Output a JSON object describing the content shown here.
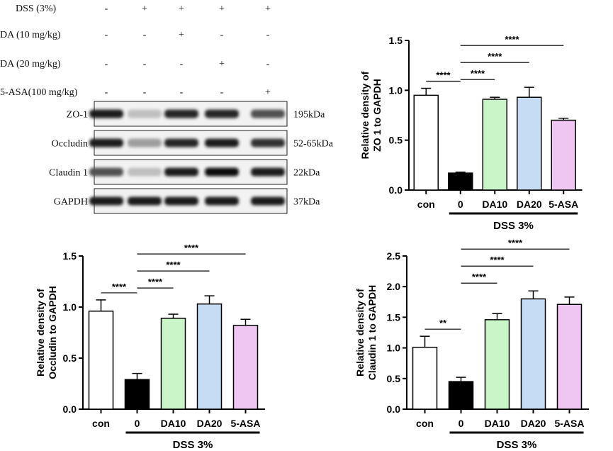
{
  "blot": {
    "conditions": [
      {
        "label": "DSS  (3%)",
        "marks": [
          "-",
          "+",
          "+",
          "+",
          "+"
        ]
      },
      {
        "label": "DA (10 mg/kg)",
        "marks": [
          "-",
          "-",
          "+",
          "-",
          "-"
        ]
      },
      {
        "label": "DA (20 mg/kg)",
        "marks": [
          "-",
          "-",
          "-",
          "+",
          "-"
        ]
      },
      {
        "label": "5-ASA(100 mg/kg)",
        "marks": [
          "-",
          "-",
          "-",
          "-",
          "+"
        ]
      }
    ],
    "proteins": [
      {
        "name": "ZO-1",
        "size": "195kDa",
        "intensity": [
          0.95,
          0.2,
          0.9,
          0.9,
          0.7
        ]
      },
      {
        "name": "Occludin",
        "size": "52-65kDa",
        "intensity": [
          0.95,
          0.35,
          0.9,
          0.95,
          0.85
        ]
      },
      {
        "name": "Claudin 1",
        "size": "22kDa",
        "intensity": [
          0.7,
          0.2,
          0.95,
          1.0,
          0.95
        ]
      },
      {
        "name": "GAPDH",
        "size": "37kDa",
        "intensity": [
          0.95,
          0.95,
          0.95,
          0.95,
          0.95
        ]
      }
    ]
  },
  "chart_data": [
    {
      "type": "bar",
      "ylabel_lines": [
        "Relative density of",
        "ZO 1 to GAPDH"
      ],
      "categories": [
        "con",
        "0",
        "DA10",
        "DA20",
        "5-ASA"
      ],
      "values": [
        0.95,
        0.17,
        0.91,
        0.93,
        0.7
      ],
      "errors": [
        0.07,
        0.01,
        0.02,
        0.1,
        0.02
      ],
      "ylim": [
        0,
        1.5
      ],
      "yticks": [
        "0.0",
        "0.5",
        "1.0",
        "1.5"
      ],
      "colors": [
        "#ffffff",
        "#000000",
        "#c9f5c9",
        "#c6dcf5",
        "#efc6f2"
      ],
      "group_label": "DSS 3%",
      "significance": [
        {
          "from": 0,
          "to": 1,
          "label": "****"
        },
        {
          "from": 1,
          "to": 2,
          "label": "****"
        },
        {
          "from": 1,
          "to": 3,
          "label": "****"
        },
        {
          "from": 1,
          "to": 4,
          "label": "****"
        }
      ]
    },
    {
      "type": "bar",
      "ylabel_lines": [
        "Relative density of",
        "Occludin to GAPDH"
      ],
      "categories": [
        "con",
        "0",
        "DA10",
        "DA20",
        "5-ASA"
      ],
      "values": [
        0.96,
        0.29,
        0.89,
        1.03,
        0.82
      ],
      "errors": [
        0.11,
        0.06,
        0.04,
        0.08,
        0.06
      ],
      "ylim": [
        0,
        1.5
      ],
      "yticks": [
        "0.0",
        "0.5",
        "1.0",
        "1.5"
      ],
      "colors": [
        "#ffffff",
        "#000000",
        "#c9f5c9",
        "#c6dcf5",
        "#efc6f2"
      ],
      "group_label": "DSS 3%",
      "significance": [
        {
          "from": 0,
          "to": 1,
          "label": "****"
        },
        {
          "from": 1,
          "to": 2,
          "label": "****"
        },
        {
          "from": 1,
          "to": 3,
          "label": "****"
        },
        {
          "from": 1,
          "to": 4,
          "label": "****"
        }
      ]
    },
    {
      "type": "bar",
      "ylabel_lines": [
        "Relative density of",
        "Claudin 1  to GAPDH"
      ],
      "categories": [
        "con",
        "0",
        "DA10",
        "DA20",
        "5-ASA"
      ],
      "values": [
        1.01,
        0.45,
        1.46,
        1.8,
        1.71
      ],
      "errors": [
        0.18,
        0.07,
        0.1,
        0.13,
        0.12
      ],
      "ylim": [
        0,
        2.5
      ],
      "yticks": [
        "0.0",
        "0.5",
        "1.0",
        "1.5",
        "2.0",
        "2.5"
      ],
      "colors": [
        "#ffffff",
        "#000000",
        "#c9f5c9",
        "#c6dcf5",
        "#efc6f2"
      ],
      "group_label": "DSS 3%",
      "significance": [
        {
          "from": 0,
          "to": 1,
          "label": "**"
        },
        {
          "from": 1,
          "to": 2,
          "label": "****"
        },
        {
          "from": 1,
          "to": 3,
          "label": "****"
        },
        {
          "from": 1,
          "to": 4,
          "label": "****"
        }
      ]
    }
  ]
}
